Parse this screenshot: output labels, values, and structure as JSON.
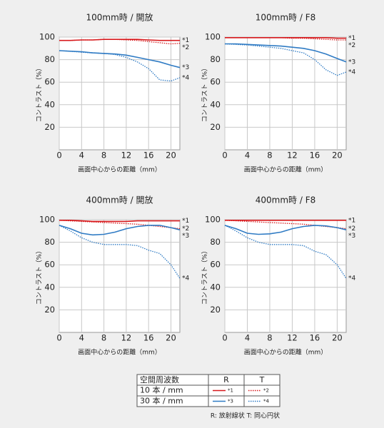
{
  "chart_data": [
    {
      "type": "line",
      "title": "100mm時 / 開放",
      "xlabel": "画面中心からの距離（mm）",
      "ylabel": "コントラスト（%）",
      "x": [
        0,
        2,
        4,
        6,
        8,
        10,
        12,
        14,
        16,
        18,
        20,
        21.6
      ],
      "xlim": [
        0,
        21.6
      ],
      "ylim": [
        0,
        100
      ],
      "xticks": [
        0,
        4,
        8,
        12,
        16,
        20
      ],
      "yticks": [
        20,
        40,
        60,
        80,
        100
      ],
      "grid": true,
      "series": [
        {
          "name": "*1",
          "color": "#d7191c",
          "dash": "solid",
          "values": [
            97,
            97,
            97.5,
            97.5,
            98,
            98,
            98,
            98,
            97.5,
            97,
            97,
            97
          ]
        },
        {
          "name": "*2",
          "color": "#d7191c",
          "dash": "dotted",
          "values": [
            97,
            97,
            97.5,
            97.5,
            98,
            98,
            97.5,
            97,
            96,
            95,
            94,
            94.5
          ]
        },
        {
          "name": "*3",
          "color": "#2f7bc4",
          "dash": "solid",
          "values": [
            88,
            87.5,
            87,
            86,
            85.5,
            85,
            84,
            82,
            80,
            78,
            75,
            73
          ]
        },
        {
          "name": "*4",
          "color": "#2f7bc4",
          "dash": "dotted",
          "values": [
            88,
            87.5,
            86.5,
            86,
            85.5,
            84.5,
            82,
            78,
            72,
            62,
            61,
            64
          ]
        }
      ]
    },
    {
      "type": "line",
      "title": "100mm時 / F8",
      "xlabel": "画面中心からの距離（mm）",
      "ylabel": "コントラスト（%）",
      "x": [
        0,
        2,
        4,
        6,
        8,
        10,
        12,
        14,
        16,
        18,
        20,
        21.6
      ],
      "xlim": [
        0,
        21.6
      ],
      "ylim": [
        0,
        100
      ],
      "xticks": [
        0,
        4,
        8,
        12,
        16,
        20
      ],
      "yticks": [
        20,
        40,
        60,
        80,
        100
      ],
      "grid": true,
      "series": [
        {
          "name": "*1",
          "color": "#d7191c",
          "dash": "solid",
          "values": [
            99.5,
            99.5,
            99.5,
            99.5,
            99.5,
            99.5,
            99.5,
            99.5,
            99.5,
            99.5,
            99,
            99
          ]
        },
        {
          "name": "*2",
          "color": "#d7191c",
          "dash": "dotted",
          "values": [
            99.5,
            99.5,
            99.5,
            99.5,
            99.5,
            99.5,
            99,
            99,
            98.5,
            98,
            97.5,
            97.5
          ]
        },
        {
          "name": "*3",
          "color": "#2f7bc4",
          "dash": "solid",
          "values": [
            94,
            94,
            93.5,
            93,
            92.5,
            92,
            91,
            90,
            88,
            85,
            81,
            78
          ]
        },
        {
          "name": "*4",
          "color": "#2f7bc4",
          "dash": "dotted",
          "values": [
            94,
            93.5,
            93,
            92,
            91,
            90,
            88,
            86,
            80,
            71,
            66,
            69
          ]
        }
      ]
    },
    {
      "type": "line",
      "title": "400mm時 / 開放",
      "xlabel": "画面中心からの距離（mm）",
      "ylabel": "コントラスト（%）",
      "x": [
        0,
        2,
        4,
        6,
        8,
        10,
        12,
        14,
        16,
        18,
        20,
        21.6
      ],
      "xlim": [
        0,
        21.6
      ],
      "ylim": [
        0,
        100
      ],
      "xticks": [
        0,
        4,
        8,
        12,
        16,
        20
      ],
      "yticks": [
        20,
        40,
        60,
        80,
        100
      ],
      "grid": true,
      "series": [
        {
          "name": "*1",
          "color": "#d7191c",
          "dash": "solid",
          "values": [
            99.5,
            99.5,
            99,
            98.5,
            98.5,
            98.5,
            98.5,
            99,
            99,
            99,
            99,
            99
          ]
        },
        {
          "name": "*2",
          "color": "#d7191c",
          "dash": "dotted",
          "values": [
            99.5,
            99,
            98.5,
            98,
            97.5,
            97,
            96.5,
            96,
            95,
            94,
            93,
            92
          ]
        },
        {
          "name": "*3",
          "color": "#2f7bc4",
          "dash": "solid",
          "values": [
            95,
            92,
            88,
            86.5,
            87,
            89,
            92,
            94,
            95,
            95,
            93,
            91
          ]
        },
        {
          "name": "*4",
          "color": "#2f7bc4",
          "dash": "dotted",
          "values": [
            95,
            90,
            84,
            80,
            78,
            78,
            78,
            77,
            73,
            70,
            60,
            48
          ]
        }
      ]
    },
    {
      "type": "line",
      "title": "400mm時 / F8",
      "xlabel": "画面中心からの距離（mm）",
      "ylabel": "コントラスト（%）",
      "x": [
        0,
        2,
        4,
        6,
        8,
        10,
        12,
        14,
        16,
        18,
        20,
        21.6
      ],
      "xlim": [
        0,
        21.6
      ],
      "ylim": [
        0,
        100
      ],
      "xticks": [
        0,
        4,
        8,
        12,
        16,
        20
      ],
      "yticks": [
        20,
        40,
        60,
        80,
        100
      ],
      "grid": true,
      "series": [
        {
          "name": "*1",
          "color": "#d7191c",
          "dash": "solid",
          "values": [
            99.5,
            99.5,
            99.5,
            99.5,
            99.5,
            99.5,
            99.5,
            99.5,
            99.5,
            99.5,
            99.5,
            99.5
          ]
        },
        {
          "name": "*2",
          "color": "#d7191c",
          "dash": "dotted",
          "values": [
            99.5,
            99,
            98.5,
            98,
            97.5,
            97,
            96.5,
            96,
            95,
            94,
            93,
            92
          ]
        },
        {
          "name": "*3",
          "color": "#2f7bc4",
          "dash": "solid",
          "values": [
            95,
            92,
            88,
            87,
            87.5,
            89,
            92,
            94,
            95,
            94.5,
            93,
            91
          ]
        },
        {
          "name": "*4",
          "color": "#2f7bc4",
          "dash": "dotted",
          "values": [
            95,
            90,
            84,
            80,
            78,
            78,
            78,
            77,
            72,
            69,
            60,
            48
          ]
        }
      ]
    }
  ],
  "legend_table": {
    "header": [
      "空間周波数",
      "R",
      "T"
    ],
    "rows": [
      [
        "10 本 / mm",
        "*1",
        "*2"
      ],
      [
        "30 本 / mm",
        "*3",
        "*4"
      ]
    ],
    "note": "R: 放射線状  T: 同心円状"
  }
}
